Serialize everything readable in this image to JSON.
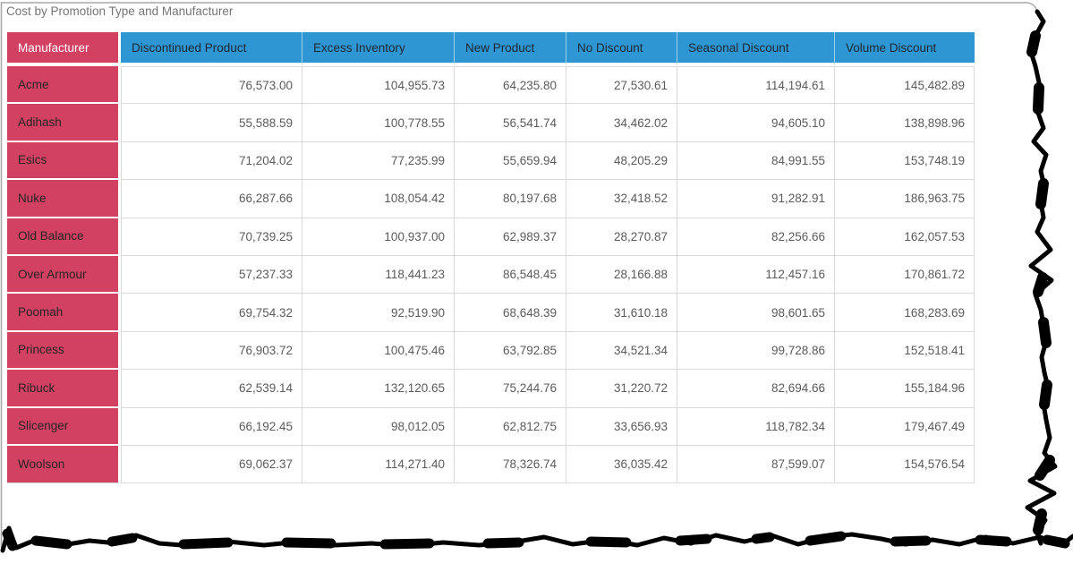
{
  "title": "Cost by Promotion Type and Manufacturer",
  "chart_data": {
    "type": "table",
    "title": "Cost by Promotion Type and Manufacturer",
    "corner_header": "Manufacturer",
    "columns": [
      "Discontinued Product",
      "Excess Inventory",
      "New Product",
      "No Discount",
      "Seasonal Discount",
      "Volume Discount"
    ],
    "rows": [
      {
        "manufacturer": "Acme",
        "values": [
          "76,573.00",
          "104,955.73",
          "64,235.80",
          "27,530.61",
          "114,194.61",
          "145,482.89"
        ]
      },
      {
        "manufacturer": "Adihash",
        "values": [
          "55,588.59",
          "100,778.55",
          "56,541.74",
          "34,462.02",
          "94,605.10",
          "138,898.96"
        ]
      },
      {
        "manufacturer": "Esics",
        "values": [
          "71,204.02",
          "77,235.99",
          "55,659.94",
          "48,205.29",
          "84,991.55",
          "153,748.19"
        ]
      },
      {
        "manufacturer": "Nuke",
        "values": [
          "66,287.66",
          "108,054.42",
          "80,197.68",
          "32,418.52",
          "91,282.91",
          "186,963.75"
        ]
      },
      {
        "manufacturer": "Old Balance",
        "values": [
          "70,739.25",
          "100,937.00",
          "62,989.37",
          "28,270.87",
          "82,256.66",
          "162,057.53"
        ]
      },
      {
        "manufacturer": "Over Armour",
        "values": [
          "57,237.33",
          "118,441.23",
          "86,548.45",
          "28,166.88",
          "112,457.16",
          "170,861.72"
        ]
      },
      {
        "manufacturer": "Poomah",
        "values": [
          "69,754.32",
          "92,519.90",
          "68,648.39",
          "31,610.18",
          "98,601.65",
          "168,283.69"
        ]
      },
      {
        "manufacturer": "Princess",
        "values": [
          "76,903.72",
          "100,475.46",
          "63,792.85",
          "34,521.34",
          "99,728.86",
          "152,518.41"
        ]
      },
      {
        "manufacturer": "Ribuck",
        "values": [
          "62,539.14",
          "132,120.65",
          "75,244.76",
          "31,220.72",
          "82,694.66",
          "155,184.96"
        ]
      },
      {
        "manufacturer": "Slicenger",
        "values": [
          "66,192.45",
          "98,012.05",
          "62,812.75",
          "33,656.93",
          "118,782.34",
          "179,467.49"
        ]
      },
      {
        "manufacturer": "Woolson",
        "values": [
          "69,062.37",
          "114,271.40",
          "78,326.74",
          "36,035.42",
          "87,599.07",
          "154,576.54"
        ]
      }
    ]
  },
  "colors": {
    "header_blue": "#2E96D2",
    "row_header_pink": "#D24062",
    "header_text": "#1F2833",
    "cell_text": "#5B5B5B",
    "grid_line": "#D9D9D9",
    "title_text": "#757575",
    "torn_edge": "#000000",
    "page_border": "#A9A9A9"
  }
}
